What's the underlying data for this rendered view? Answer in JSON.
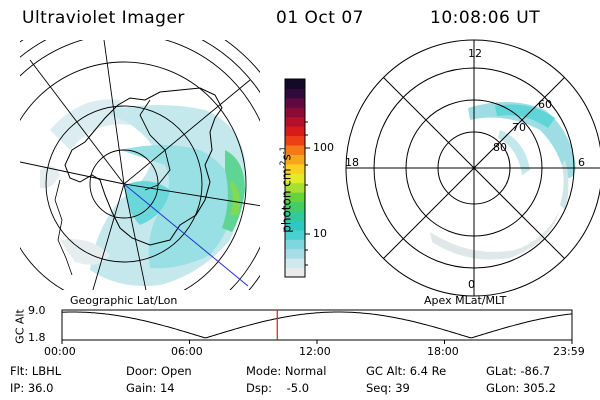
{
  "header": {
    "instrument": "Ultraviolet Imager",
    "date": "01 Oct 07",
    "time": "10:08:06 UT"
  },
  "left_map": {
    "caption": "Geographic Lat/Lon"
  },
  "right_map": {
    "caption": "Apex MLat/MLT",
    "mlt_labels": {
      "top": "12",
      "left": "18",
      "right": "6",
      "bottom": "0"
    },
    "lat_labels": [
      "60",
      "70",
      "80"
    ]
  },
  "colorbar": {
    "unit_label": "photon cm",
    "unit_sup1": "-2",
    "unit_mid": "s",
    "unit_sup2": "-1",
    "tick_labels": [
      "100",
      "10"
    ],
    "colors": [
      "#eaeaea",
      "#cfe9ee",
      "#a8dde6",
      "#7fd6dc",
      "#4ccfd0",
      "#2ec8c0",
      "#34c99a",
      "#44cc66",
      "#66d33a",
      "#a8e030",
      "#e3ea28",
      "#f7d020",
      "#f7a51c",
      "#f57918",
      "#ed3f16",
      "#d81a1a",
      "#b3102a",
      "#8a0c36",
      "#5e0a3e",
      "#2f0a3a",
      "#120a26"
    ]
  },
  "altitude_plot": {
    "y_label": "GC Alt",
    "y_ticks": [
      "9.0",
      "1.8"
    ],
    "x_ticks": [
      "00:00",
      "06:00",
      "12:00",
      "18:00",
      "23:59"
    ],
    "current_time_hours": 10.13,
    "colors": {
      "trace": "#000000",
      "marker": "#cc2222"
    }
  },
  "info": {
    "flt_label": "Flt: LBHL",
    "door_label": "Door: Open",
    "mode_label": "Mode: Normal",
    "gcalt_label": "GC Alt: 6.4 Re",
    "glat_label": "GLat: -86.7",
    "ip_label": "IP: 36.0",
    "gain_label": "Gain: 14",
    "dsp_label": "Dsp:    -5.0",
    "seq_label": "Seq: 39",
    "glon_label": "GLon: 305.2"
  }
}
